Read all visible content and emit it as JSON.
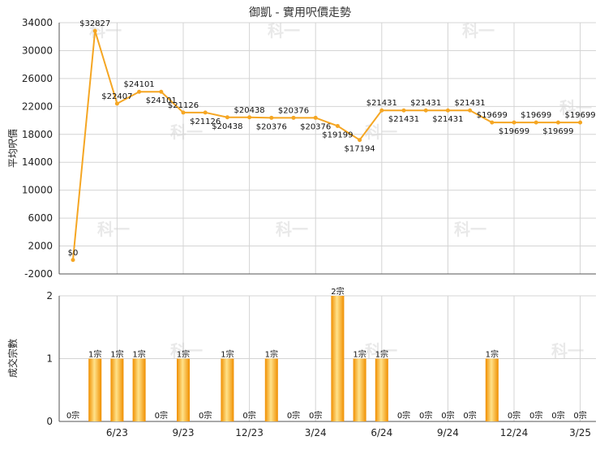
{
  "title": "御凱 - 實用呎價走勢",
  "watermark": "科一",
  "chart_data": [
    {
      "type": "line",
      "title": "御凱 - 實用呎價走勢",
      "ylabel": "平均呎價",
      "ylim": [
        -2000,
        34000
      ],
      "yticks": [
        -2000,
        2000,
        6000,
        10000,
        14000,
        18000,
        22000,
        26000,
        30000,
        34000
      ],
      "grid": true,
      "color": "#f5a623",
      "x_month_index": [
        0,
        1,
        2,
        3,
        4,
        5,
        6,
        7,
        8,
        9,
        10,
        11,
        12,
        13,
        14,
        15,
        16,
        17,
        18,
        19,
        20,
        21,
        22,
        23
      ],
      "values": [
        0,
        32827,
        22407,
        24101,
        24101,
        21126,
        21126,
        20438,
        20438,
        20376,
        20376,
        20376,
        19199,
        17194,
        21431,
        21431,
        21431,
        21431,
        21431,
        19699,
        19699,
        19699,
        19699,
        19699
      ],
      "labels": [
        "$0",
        "$32827",
        "$22407",
        "$24101",
        "$24101",
        "$21126",
        "$21126",
        "$20438",
        "$20438",
        "$20376",
        "$20376",
        "$20376",
        "$19199",
        "$17194",
        "$21431",
        "$21431",
        "$21431",
        "$21431",
        "$21431",
        "$19699",
        "$19699",
        "$19699",
        "$19699",
        "$19699"
      ],
      "label_position": [
        "above",
        "above",
        "above",
        "above",
        "below",
        "above",
        "below",
        "below",
        "above",
        "below",
        "above",
        "below",
        "below",
        "below",
        "above",
        "below",
        "above",
        "below",
        "above",
        "above",
        "below",
        "above",
        "below",
        "above"
      ]
    },
    {
      "type": "bar",
      "ylabel": "成交宗數",
      "ylim": [
        0,
        2
      ],
      "yticks": [
        0,
        1,
        2
      ],
      "grid": true,
      "color": "#f5a623",
      "x_month_index": [
        0,
        1,
        2,
        3,
        4,
        5,
        6,
        7,
        8,
        9,
        10,
        11,
        12,
        13,
        14,
        15,
        16,
        17,
        18,
        19,
        20,
        21,
        22,
        23
      ],
      "values": [
        0,
        1,
        1,
        1,
        0,
        1,
        0,
        1,
        0,
        1,
        0,
        0,
        2,
        1,
        1,
        0,
        0,
        0,
        0,
        1,
        0,
        0,
        0,
        0
      ],
      "labels": [
        "0宗",
        "1宗",
        "1宗",
        "1宗",
        "0宗",
        "1宗",
        "0宗",
        "1宗",
        "0宗",
        "1宗",
        "0宗",
        "0宗",
        "2宗",
        "1宗",
        "1宗",
        "0宗",
        "0宗",
        "0宗",
        "0宗",
        "1宗",
        "0宗",
        "0宗",
        "0宗",
        "0宗"
      ],
      "xticks": [
        {
          "month_index": 2,
          "label": "6/23"
        },
        {
          "month_index": 5,
          "label": "9/23"
        },
        {
          "month_index": 8,
          "label": "12/23"
        },
        {
          "month_index": 11,
          "label": "3/24"
        },
        {
          "month_index": 14,
          "label": "6/24"
        },
        {
          "month_index": 17,
          "label": "9/24"
        },
        {
          "month_index": 20,
          "label": "12/24"
        },
        {
          "month_index": 23,
          "label": "3/25"
        }
      ]
    }
  ]
}
